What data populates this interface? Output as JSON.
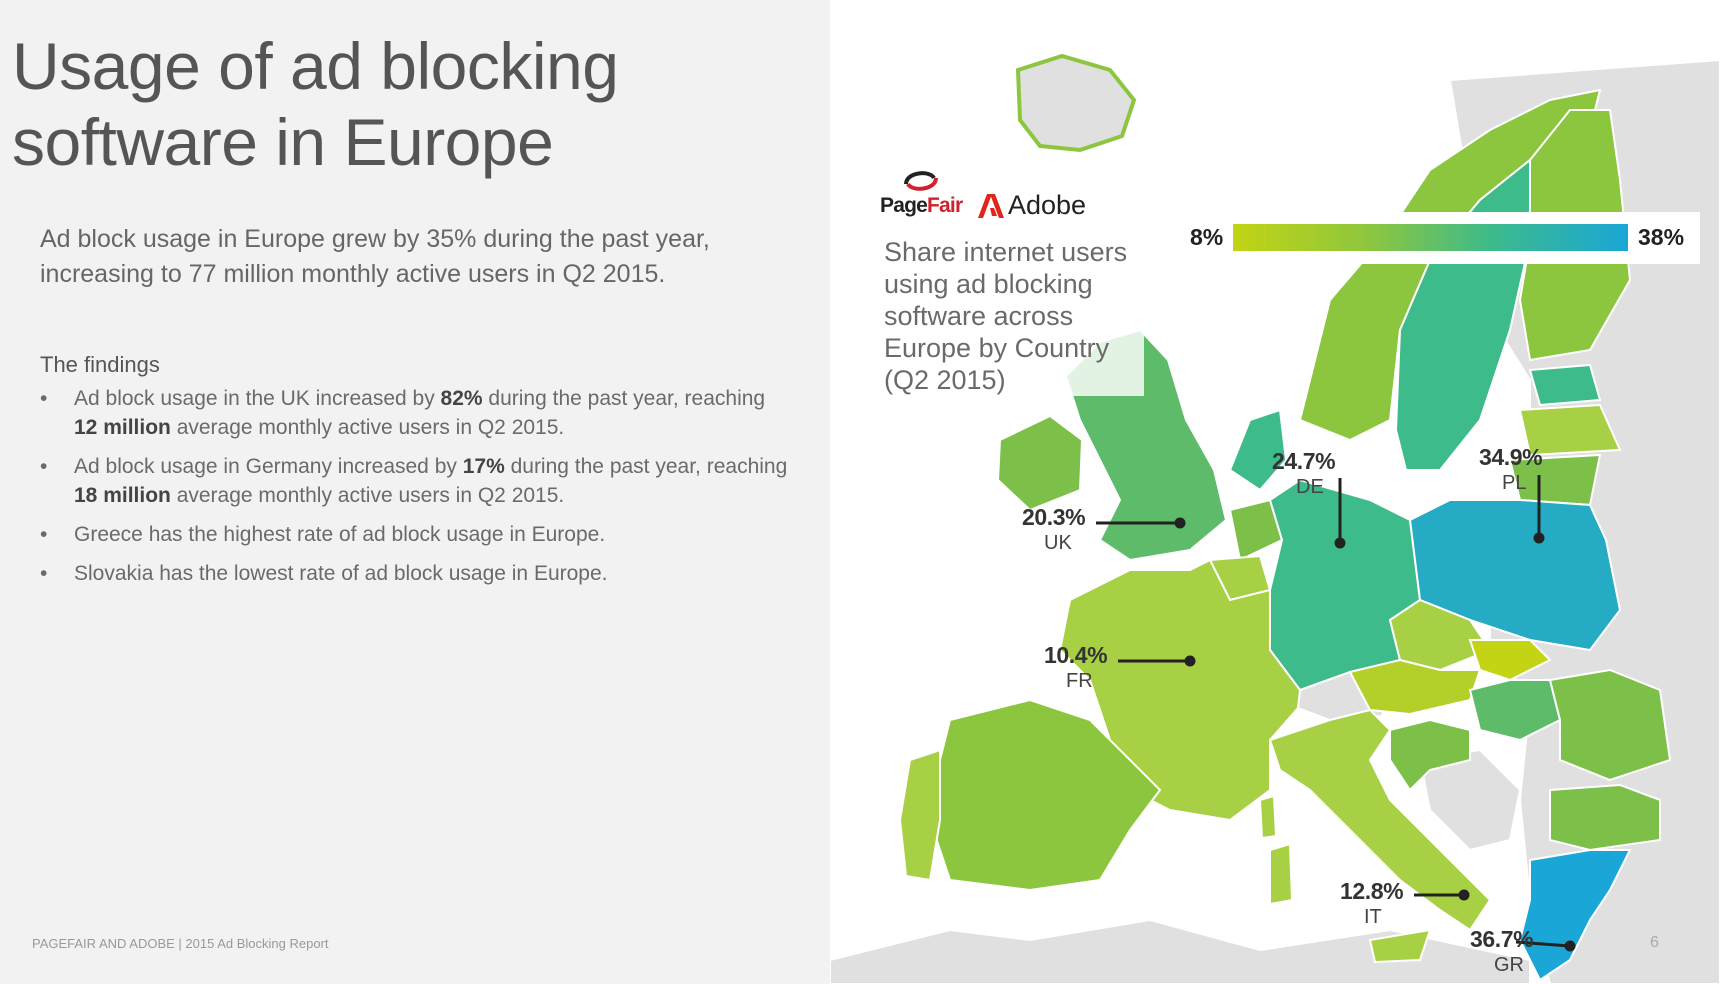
{
  "slide": {
    "title": "Usage of ad blocking software in Europe",
    "intro": "Ad block usage in Europe grew by 35% during the past year, increasing to 77 million monthly active users in Q2 2015.",
    "findings_heading": "The findings",
    "findings": [
      {
        "bullet": "•",
        "parts": [
          {
            "text": "Ad block usage in the UK increased by ",
            "bold": false
          },
          {
            "text": "82%",
            "bold": true
          },
          {
            "text": " during the past year, reaching ",
            "bold": false
          },
          {
            "text": "12 million",
            "bold": true
          },
          {
            "text": " average monthly active users in Q2 2015.",
            "bold": false
          }
        ]
      },
      {
        "bullet": "•",
        "parts": [
          {
            "text": "Ad block usage in Germany increased by ",
            "bold": false
          },
          {
            "text": "17%",
            "bold": true
          },
          {
            "text": " during the past year, reaching ",
            "bold": false
          },
          {
            "text": "18 million",
            "bold": true
          },
          {
            "text": " average monthly active users in Q2 2015.",
            "bold": false
          }
        ]
      },
      {
        "bullet": "•",
        "parts": [
          {
            "text": "Greece has the highest rate of ad block usage in Europe.",
            "bold": false
          }
        ]
      },
      {
        "bullet": "•",
        "parts": [
          {
            "text": "Slovakia has the lowest rate of ad block usage in Europe.",
            "bold": false
          }
        ]
      }
    ],
    "footer": "PAGEFAIR AND ADOBE | 2015 Ad Blocking Report",
    "page_number": "6"
  },
  "logos": {
    "pagefair_prefix": "Page",
    "pagefair_suffix": "Fair",
    "adobe": "Adobe",
    "pagefair_icon": "pagefair-logo-icon",
    "adobe_icon": "adobe-logo-icon"
  },
  "map": {
    "title": "Share internet users using ad blocking software across Europe by Country (Q2 2015)",
    "legend": {
      "min_label": "8%",
      "max_label": "38%",
      "min_value": 8,
      "max_value": 38,
      "colors": [
        "#c2d414",
        "#8cc63f",
        "#3dbb8a",
        "#1aa6d6"
      ]
    },
    "no_data_color": "#e0e0e0",
    "sea_color": "#ffffff",
    "callouts": [
      {
        "key": "uk",
        "code": "UK",
        "value": "20.3%",
        "rate": 20.3
      },
      {
        "key": "de",
        "code": "DE",
        "value": "24.7%",
        "rate": 24.7
      },
      {
        "key": "pl",
        "code": "PL",
        "value": "34.9%",
        "rate": 34.9
      },
      {
        "key": "fr",
        "code": "FR",
        "value": "10.4%",
        "rate": 10.4
      },
      {
        "key": "it",
        "code": "IT",
        "value": "12.8%",
        "rate": 12.8
      },
      {
        "key": "gr",
        "code": "GR",
        "value": "36.7%",
        "rate": 36.7
      }
    ]
  }
}
